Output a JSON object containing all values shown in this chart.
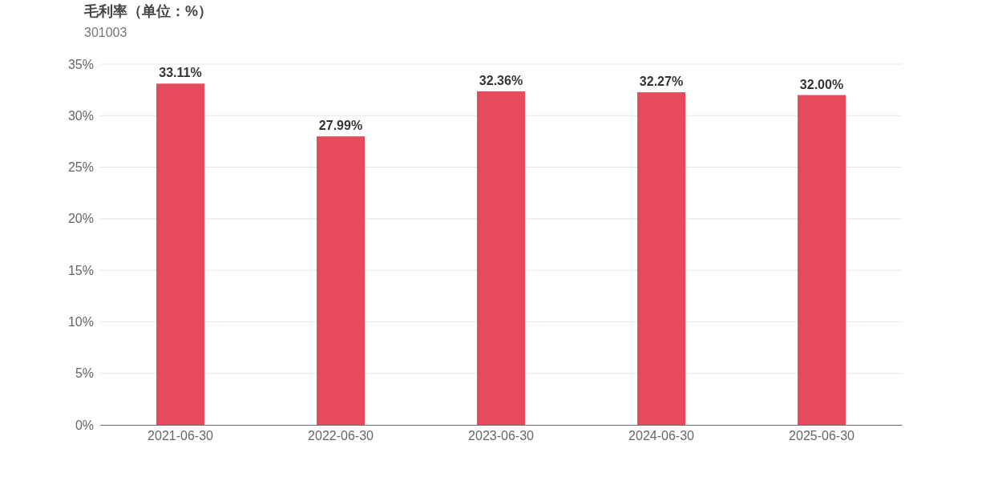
{
  "chart_data": {
    "type": "bar",
    "title": "毛利率（单位：%）",
    "subtitle": "301003",
    "categories": [
      "2021-06-30",
      "2022-06-30",
      "2023-06-30",
      "2024-06-30",
      "2025-06-30"
    ],
    "values": [
      33.11,
      27.99,
      32.36,
      32.27,
      32.0
    ],
    "value_labels": [
      "33.11%",
      "27.99%",
      "32.36%",
      "32.27%",
      "32.00%"
    ],
    "color": "#e54b5d",
    "ylim": [
      0,
      35
    ],
    "yticks": [
      {
        "value": 0,
        "label": "0%"
      },
      {
        "value": 5,
        "label": "5%"
      },
      {
        "value": 10,
        "label": "10%"
      },
      {
        "value": 15,
        "label": "15%"
      },
      {
        "value": 20,
        "label": "20%"
      },
      {
        "value": 25,
        "label": "25%"
      },
      {
        "value": 30,
        "label": "30%"
      },
      {
        "value": 35,
        "label": "35%"
      }
    ],
    "grid": "y"
  }
}
